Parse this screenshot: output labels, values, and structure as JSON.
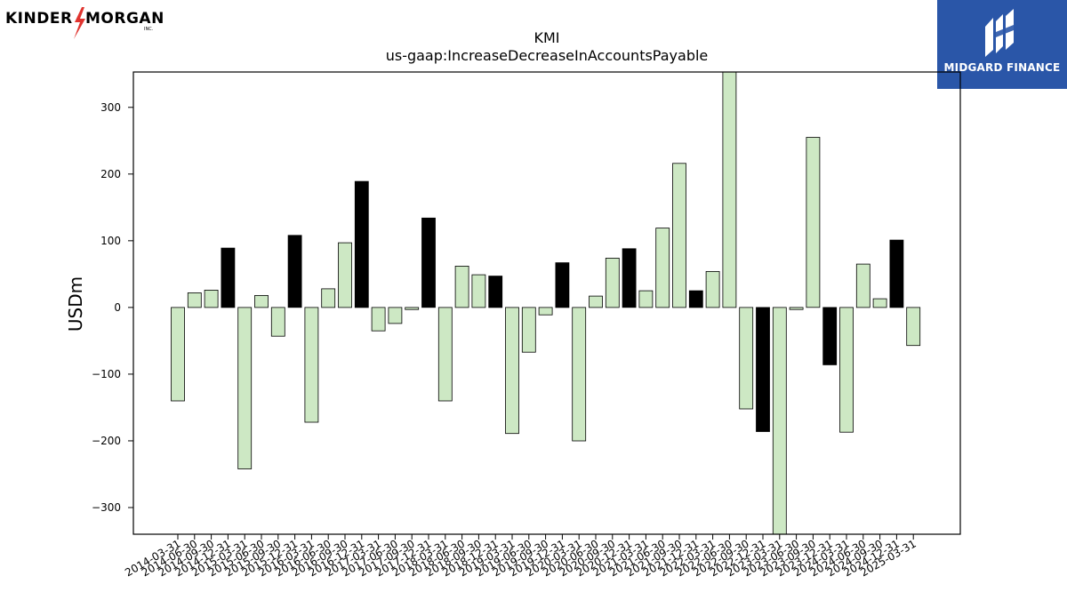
{
  "brand": {
    "left_logo_text_a": "KINDER",
    "left_logo_text_b": "MORGAN",
    "left_logo_inc": "INC.",
    "right_logo_text": "MIDGARD FINANCE"
  },
  "chart_data": {
    "type": "bar",
    "title": "KMI",
    "subtitle": "us-gaap:IncreaseDecreaseInAccountsPayable",
    "xlabel": "",
    "ylabel": "USDm",
    "ylim": [
      -340,
      353
    ],
    "yticks": [
      -300,
      -200,
      -100,
      0,
      100,
      200,
      300
    ],
    "ytick_labels": [
      "−300",
      "−200",
      "−100",
      "0",
      "100",
      "200",
      "300"
    ],
    "grid": false,
    "legend": "none",
    "colors": {
      "quarter": "#cde8c4",
      "year_end": "#000000",
      "edge": "#000000"
    },
    "categories": [
      "2014-03-31",
      "2014-06-30",
      "2014-09-30",
      "2014-12-31",
      "2015-03-31",
      "2015-06-30",
      "2015-09-30",
      "2015-12-31",
      "2016-03-31",
      "2016-06-30",
      "2016-09-30",
      "2016-12-31",
      "2017-03-31",
      "2017-06-30",
      "2017-09-30",
      "2017-12-31",
      "2018-03-31",
      "2018-06-30",
      "2018-09-30",
      "2018-12-31",
      "2019-03-31",
      "2019-06-30",
      "2019-09-30",
      "2019-12-31",
      "2020-03-31",
      "2020-06-30",
      "2020-09-30",
      "2020-12-31",
      "2021-03-31",
      "2021-06-30",
      "2021-09-30",
      "2021-12-31",
      "2022-03-31",
      "2022-06-30",
      "2022-09-30",
      "2022-12-31",
      "2023-03-31",
      "2023-06-30",
      "2023-09-30",
      "2023-12-31",
      "2024-03-31",
      "2024-06-30",
      "2024-09-30",
      "2024-12-31",
      "2025-03-31"
    ],
    "values": [
      -140,
      22,
      26,
      89,
      -242,
      18,
      -43,
      108,
      -172,
      28,
      97,
      189,
      -35,
      -24,
      -3,
      134,
      -140,
      62,
      49,
      47,
      -189,
      -67,
      -11,
      67,
      -200,
      17,
      74,
      88,
      25,
      119,
      216,
      25,
      54,
      353,
      -152,
      -186,
      -340,
      -3,
      255,
      -86,
      -187,
      65,
      13,
      101,
      -57
    ]
  }
}
